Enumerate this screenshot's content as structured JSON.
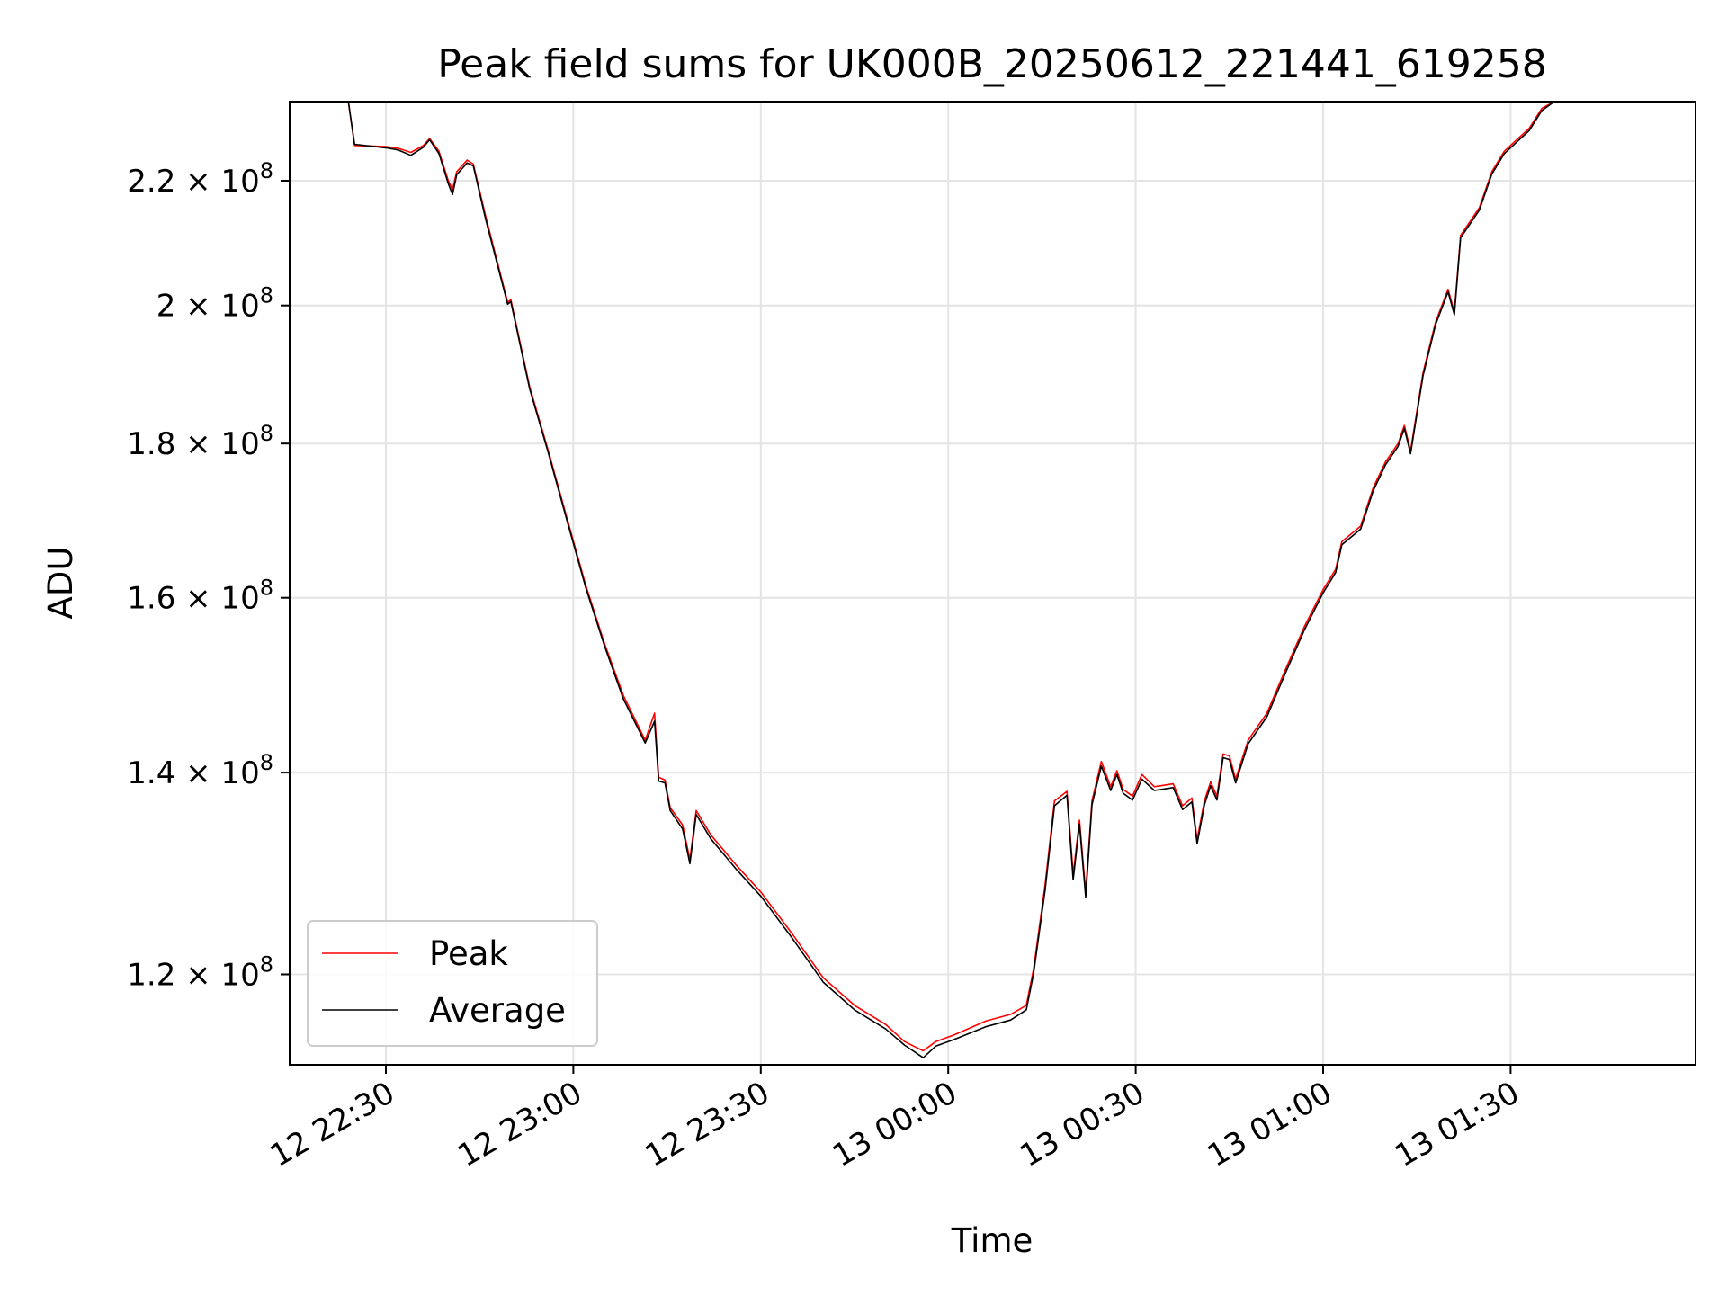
{
  "chart_data": {
    "type": "line",
    "title": "Peak field sums for UK000B_20250612_221441_619258",
    "xlabel": "Time",
    "ylabel": "ADU",
    "y_scale": "log",
    "x_tick_labels": [
      "12 22:30",
      "12 23:00",
      "12 23:30",
      "13 00:00",
      "13 00:30",
      "13 01:00",
      "13 01:30"
    ],
    "x_ticks": [
      "2025-06-12 22:30",
      "2025-06-12 23:00",
      "2025-06-12 23:30",
      "2025-06-13 00:00",
      "2025-06-13 00:30",
      "2025-06-13 01:00",
      "2025-06-13 01:30"
    ],
    "xlim": [
      "2025-06-12 22:14:36",
      "2025-06-13 01:59:36"
    ],
    "y_ticks": [
      {
        "value": 120000000,
        "mantissa": "1.2",
        "base": "10",
        "exp": "8"
      },
      {
        "value": 140000000,
        "mantissa": "1.4",
        "base": "10",
        "exp": "8"
      },
      {
        "value": 160000000,
        "mantissa": "1.6",
        "base": "10",
        "exp": "8"
      },
      {
        "value": 180000000,
        "mantissa": "1.8",
        "base": "10",
        "exp": "8"
      },
      {
        "value": 200000000,
        "mantissa": "2",
        "base": "10",
        "exp": "8"
      },
      {
        "value": 220000000,
        "mantissa": "2.2",
        "base": "10",
        "exp": "8"
      }
    ],
    "ylim": [
      112000000,
      233700000
    ],
    "grid": true,
    "legend": {
      "placement": "lower-left",
      "entries": [
        "Peak",
        "Average"
      ]
    },
    "series": [
      {
        "name": "Peak",
        "color": "#ff0000",
        "points": [
          [
            "2025-06-12 22:24:00",
            233700000
          ],
          [
            "2025-06-12 22:25:00",
            226000000
          ],
          [
            "2025-06-12 22:30:00",
            225800000
          ],
          [
            "2025-06-12 22:32:00",
            225500000
          ],
          [
            "2025-06-12 22:34:00",
            224800000
          ],
          [
            "2025-06-12 22:36:00",
            226000000
          ],
          [
            "2025-06-12 22:37:00",
            227200000
          ],
          [
            "2025-06-12 22:38:30",
            225000000
          ],
          [
            "2025-06-12 22:40:00",
            220000000
          ],
          [
            "2025-06-12 22:40:40",
            218500000
          ],
          [
            "2025-06-12 22:41:20",
            221500000
          ],
          [
            "2025-06-12 22:43:00",
            223500000
          ],
          [
            "2025-06-12 22:44:00",
            222800000
          ],
          [
            "2025-06-12 22:46:00",
            214000000
          ],
          [
            "2025-06-12 22:49:30",
            200500000
          ],
          [
            "2025-06-12 22:50:00",
            200900000
          ],
          [
            "2025-06-12 22:53:00",
            188000000
          ],
          [
            "2025-06-12 22:56:00",
            179000000
          ],
          [
            "2025-06-12 22:59:00",
            170000000
          ],
          [
            "2025-06-12 23:02:00",
            161500000
          ],
          [
            "2025-06-12 23:05:00",
            154500000
          ],
          [
            "2025-06-12 23:08:00",
            148500000
          ],
          [
            "2025-06-12 23:11:30",
            143500000
          ],
          [
            "2025-06-12 23:13:00",
            146500000
          ],
          [
            "2025-06-12 23:13:40",
            139500000
          ],
          [
            "2025-06-12 23:14:40",
            139200000
          ],
          [
            "2025-06-12 23:15:30",
            136300000
          ],
          [
            "2025-06-12 23:17:30",
            134500000
          ],
          [
            "2025-06-12 23:18:40",
            131000000
          ],
          [
            "2025-06-12 23:19:40",
            136000000
          ],
          [
            "2025-06-12 23:22:00",
            133500000
          ],
          [
            "2025-06-12 23:26:00",
            130500000
          ],
          [
            "2025-06-12 23:30:00",
            127800000
          ],
          [
            "2025-06-12 23:35:00",
            123800000
          ],
          [
            "2025-06-12 23:40:00",
            119700000
          ],
          [
            "2025-06-12 23:45:00",
            117200000
          ],
          [
            "2025-06-12 23:50:00",
            115500000
          ],
          [
            "2025-06-12 23:53:00",
            114000000
          ],
          [
            "2025-06-12 23:56:00",
            113200000
          ],
          [
            "2025-06-12 23:58:00",
            114000000
          ],
          [
            "2025-06-13 00:01:00",
            114600000
          ],
          [
            "2025-06-13 00:06:00",
            115800000
          ],
          [
            "2025-06-13 00:10:00",
            116400000
          ],
          [
            "2025-06-13 00:12:30",
            117200000
          ],
          [
            "2025-06-13 00:13:40",
            120500000
          ],
          [
            "2025-06-13 00:15:30",
            128500000
          ],
          [
            "2025-06-13 00:17:00",
            137000000
          ],
          [
            "2025-06-13 00:19:00",
            138000000
          ],
          [
            "2025-06-13 00:20:00",
            129500000
          ],
          [
            "2025-06-13 00:21:00",
            135000000
          ],
          [
            "2025-06-13 00:22:00",
            127800000
          ],
          [
            "2025-06-13 00:23:00",
            137000000
          ],
          [
            "2025-06-13 00:24:30",
            141200000
          ],
          [
            "2025-06-13 00:26:00",
            138500000
          ],
          [
            "2025-06-13 00:27:00",
            140200000
          ],
          [
            "2025-06-13 00:28:00",
            138200000
          ],
          [
            "2025-06-13 00:29:30",
            137500000
          ],
          [
            "2025-06-13 00:31:00",
            139800000
          ],
          [
            "2025-06-13 00:33:00",
            138500000
          ],
          [
            "2025-06-13 00:36:00",
            138800000
          ],
          [
            "2025-06-13 00:37:30",
            136500000
          ],
          [
            "2025-06-13 00:39:00",
            137300000
          ],
          [
            "2025-06-13 00:39:50",
            133000000
          ],
          [
            "2025-06-13 00:41:00",
            137000000
          ],
          [
            "2025-06-13 00:42:00",
            139000000
          ],
          [
            "2025-06-13 00:43:00",
            137500000
          ],
          [
            "2025-06-13 00:44:00",
            142000000
          ],
          [
            "2025-06-13 00:45:00",
            141800000
          ],
          [
            "2025-06-13 00:46:00",
            139300000
          ],
          [
            "2025-06-13 00:48:00",
            143500000
          ],
          [
            "2025-06-13 00:51:00",
            146500000
          ],
          [
            "2025-06-13 00:54:00",
            151500000
          ],
          [
            "2025-06-13 00:57:00",
            156500000
          ],
          [
            "2025-06-13 01:00:00",
            161000000
          ],
          [
            "2025-06-13 01:02:00",
            163500000
          ],
          [
            "2025-06-13 01:03:00",
            167000000
          ],
          [
            "2025-06-13 01:06:00",
            169000000
          ],
          [
            "2025-06-13 01:08:00",
            174000000
          ],
          [
            "2025-06-13 01:10:00",
            177500000
          ],
          [
            "2025-06-13 01:12:00",
            180000000
          ],
          [
            "2025-06-13 01:13:00",
            182500000
          ],
          [
            "2025-06-13 01:14:00",
            179000000
          ],
          [
            "2025-06-13 01:16:00",
            190000000
          ],
          [
            "2025-06-13 01:18:00",
            197500000
          ],
          [
            "2025-06-13 01:20:00",
            202500000
          ],
          [
            "2025-06-13 01:21:00",
            199000000
          ],
          [
            "2025-06-13 01:22:00",
            211000000
          ],
          [
            "2025-06-13 01:25:00",
            215500000
          ],
          [
            "2025-06-13 01:27:00",
            221500000
          ],
          [
            "2025-06-13 01:29:00",
            225000000
          ],
          [
            "2025-06-13 01:31:00",
            227000000
          ],
          [
            "2025-06-13 01:33:00",
            229000000
          ],
          [
            "2025-06-13 01:35:00",
            232500000
          ],
          [
            "2025-06-13 01:37:00",
            233700000
          ]
        ]
      },
      {
        "name": "Average",
        "color": "#000000",
        "points": [
          [
            "2025-06-12 22:24:00",
            233700000
          ],
          [
            "2025-06-12 22:25:00",
            226200000
          ],
          [
            "2025-06-12 22:30:00",
            225600000
          ],
          [
            "2025-06-12 22:32:00",
            225200000
          ],
          [
            "2025-06-12 22:34:00",
            224300000
          ],
          [
            "2025-06-12 22:36:00",
            225700000
          ],
          [
            "2025-06-12 22:37:00",
            227000000
          ],
          [
            "2025-06-12 22:38:30",
            224600000
          ],
          [
            "2025-06-12 22:40:00",
            219500000
          ],
          [
            "2025-06-12 22:40:40",
            217700000
          ],
          [
            "2025-06-12 22:41:20",
            221000000
          ],
          [
            "2025-06-12 22:43:00",
            223000000
          ],
          [
            "2025-06-12 22:44:00",
            222500000
          ],
          [
            "2025-06-12 22:46:00",
            213500000
          ],
          [
            "2025-06-12 22:49:30",
            200200000
          ],
          [
            "2025-06-12 22:50:00",
            200600000
          ],
          [
            "2025-06-12 22:53:00",
            187700000
          ],
          [
            "2025-06-12 22:56:00",
            178700000
          ],
          [
            "2025-06-12 22:59:00",
            169700000
          ],
          [
            "2025-06-12 23:02:00",
            161200000
          ],
          [
            "2025-06-12 23:05:00",
            154200000
          ],
          [
            "2025-06-12 23:08:00",
            148100000
          ],
          [
            "2025-06-12 23:11:30",
            143200000
          ],
          [
            "2025-06-12 23:13:00",
            145600000
          ],
          [
            "2025-06-12 23:13:40",
            139100000
          ],
          [
            "2025-06-12 23:14:40",
            138900000
          ],
          [
            "2025-06-12 23:15:30",
            136000000
          ],
          [
            "2025-06-12 23:17:30",
            134100000
          ],
          [
            "2025-06-12 23:18:40",
            130600000
          ],
          [
            "2025-06-12 23:19:40",
            135600000
          ],
          [
            "2025-06-12 23:22:00",
            133100000
          ],
          [
            "2025-06-12 23:26:00",
            130100000
          ],
          [
            "2025-06-12 23:30:00",
            127400000
          ],
          [
            "2025-06-12 23:35:00",
            123400000
          ],
          [
            "2025-06-12 23:40:00",
            119300000
          ],
          [
            "2025-06-12 23:45:00",
            116800000
          ],
          [
            "2025-06-12 23:50:00",
            115100000
          ],
          [
            "2025-06-12 23:53:00",
            113700000
          ],
          [
            "2025-06-12 23:56:00",
            112600000
          ],
          [
            "2025-06-12 23:58:00",
            113600000
          ],
          [
            "2025-06-13 00:01:00",
            114200000
          ],
          [
            "2025-06-13 00:06:00",
            115300000
          ],
          [
            "2025-06-13 00:10:00",
            115900000
          ],
          [
            "2025-06-13 00:12:30",
            116800000
          ],
          [
            "2025-06-13 00:13:40",
            120100000
          ],
          [
            "2025-06-13 00:15:30",
            128000000
          ],
          [
            "2025-06-13 00:17:00",
            136500000
          ],
          [
            "2025-06-13 00:19:00",
            137600000
          ],
          [
            "2025-06-13 00:20:00",
            129000000
          ],
          [
            "2025-06-13 00:21:00",
            134600000
          ],
          [
            "2025-06-13 00:22:00",
            127300000
          ],
          [
            "2025-06-13 00:23:00",
            136600000
          ],
          [
            "2025-06-13 00:24:30",
            140700000
          ],
          [
            "2025-06-13 00:26:00",
            138100000
          ],
          [
            "2025-06-13 00:27:00",
            139800000
          ],
          [
            "2025-06-13 00:28:00",
            137800000
          ],
          [
            "2025-06-13 00:29:30",
            137100000
          ],
          [
            "2025-06-13 00:31:00",
            139300000
          ],
          [
            "2025-06-13 00:33:00",
            138100000
          ],
          [
            "2025-06-13 00:36:00",
            138400000
          ],
          [
            "2025-06-13 00:37:30",
            136100000
          ],
          [
            "2025-06-13 00:39:00",
            136900000
          ],
          [
            "2025-06-13 00:39:50",
            132600000
          ],
          [
            "2025-06-13 00:41:00",
            136600000
          ],
          [
            "2025-06-13 00:42:00",
            138600000
          ],
          [
            "2025-06-13 00:43:00",
            137100000
          ],
          [
            "2025-06-13 00:44:00",
            141600000
          ],
          [
            "2025-06-13 00:45:00",
            141400000
          ],
          [
            "2025-06-13 00:46:00",
            138900000
          ],
          [
            "2025-06-13 00:48:00",
            143100000
          ],
          [
            "2025-06-13 00:51:00",
            146100000
          ],
          [
            "2025-06-13 00:54:00",
            151100000
          ],
          [
            "2025-06-13 00:57:00",
            156100000
          ],
          [
            "2025-06-13 01:00:00",
            160600000
          ],
          [
            "2025-06-13 01:02:00",
            163100000
          ],
          [
            "2025-06-13 01:03:00",
            166600000
          ],
          [
            "2025-06-13 01:06:00",
            168600000
          ],
          [
            "2025-06-13 01:08:00",
            173600000
          ],
          [
            "2025-06-13 01:10:00",
            177100000
          ],
          [
            "2025-06-13 01:12:00",
            179600000
          ],
          [
            "2025-06-13 01:13:00",
            182100000
          ],
          [
            "2025-06-13 01:14:00",
            178600000
          ],
          [
            "2025-06-13 01:16:00",
            189600000
          ],
          [
            "2025-06-13 01:18:00",
            197100000
          ],
          [
            "2025-06-13 01:20:00",
            202100000
          ],
          [
            "2025-06-13 01:21:00",
            198600000
          ],
          [
            "2025-06-13 01:22:00",
            210600000
          ],
          [
            "2025-06-13 01:25:00",
            215100000
          ],
          [
            "2025-06-13 01:27:00",
            221100000
          ],
          [
            "2025-06-13 01:29:00",
            224600000
          ],
          [
            "2025-06-13 01:31:00",
            226600000
          ],
          [
            "2025-06-13 01:33:00",
            228600000
          ],
          [
            "2025-06-13 01:35:00",
            232100000
          ],
          [
            "2025-06-13 01:37:00",
            233700000
          ]
        ]
      }
    ]
  }
}
